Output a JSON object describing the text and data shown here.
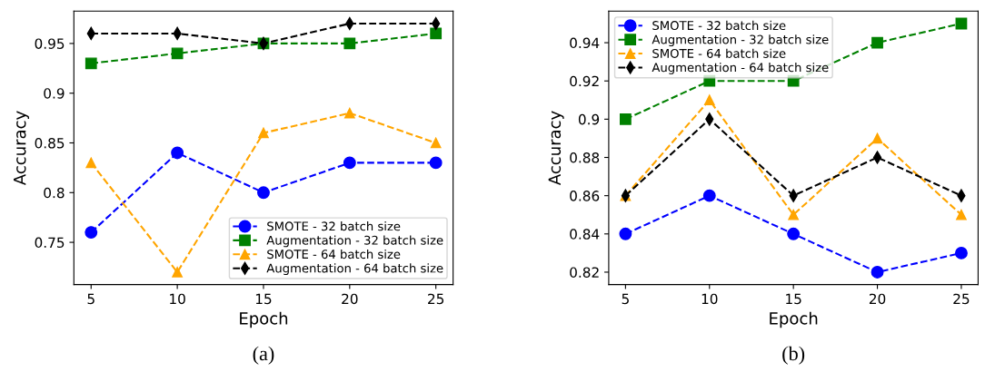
{
  "chart_data": [
    {
      "type": "line",
      "xlabel": "Epoch",
      "ylabel": "Accuracy",
      "annotations": [
        "(a)"
      ],
      "x": [
        5,
        10,
        15,
        20,
        25
      ],
      "xlim": [
        4,
        26
      ],
      "xticks": [
        5,
        10,
        15,
        20,
        25
      ],
      "ylim": [
        0.7075,
        0.9825
      ],
      "yticks": [
        0.75,
        0.8,
        0.85,
        0.9,
        0.95
      ],
      "legend": "bottom right",
      "line_style": "dashed",
      "grid": false,
      "series": [
        {
          "name": "SMOTE - 32 batch size",
          "color": "#0000ff",
          "marker": "circle",
          "values": [
            0.76,
            0.84,
            0.8,
            0.83,
            0.83
          ]
        },
        {
          "name": "Augmentation - 32 batch size",
          "color": "#008000",
          "marker": "square",
          "values": [
            0.93,
            0.94,
            0.95,
            0.95,
            0.96
          ]
        },
        {
          "name": "SMOTE - 64 batch size",
          "color": "#ffa500",
          "marker": "triangle",
          "values": [
            0.83,
            0.72,
            0.86,
            0.88,
            0.85
          ]
        },
        {
          "name": "Augmentation - 64 batch size",
          "color": "#000000",
          "marker": "diamond",
          "values": [
            0.96,
            0.96,
            0.95,
            0.97,
            0.97
          ]
        }
      ]
    },
    {
      "type": "line",
      "xlabel": "Epoch",
      "ylabel": "Accuracy",
      "annotations": [
        "(b)"
      ],
      "x": [
        5,
        10,
        15,
        20,
        25
      ],
      "xlim": [
        4,
        26
      ],
      "xticks": [
        5,
        10,
        15,
        20,
        25
      ],
      "ylim": [
        0.8135,
        0.9565
      ],
      "yticks": [
        0.82,
        0.84,
        0.86,
        0.88,
        0.9,
        0.92,
        0.94
      ],
      "legend": "top left",
      "line_style": "dashed",
      "grid": false,
      "series": [
        {
          "name": "SMOTE - 32 batch size",
          "color": "#0000ff",
          "marker": "circle",
          "values": [
            0.84,
            0.86,
            0.84,
            0.82,
            0.83
          ]
        },
        {
          "name": "Augmentation - 32 batch size",
          "color": "#008000",
          "marker": "square",
          "values": [
            0.9,
            0.92,
            0.92,
            0.94,
            0.95
          ]
        },
        {
          "name": "SMOTE - 64 batch size",
          "color": "#ffa500",
          "marker": "triangle",
          "values": [
            0.86,
            0.91,
            0.85,
            0.89,
            0.85
          ]
        },
        {
          "name": "Augmentation - 64 batch size",
          "color": "#000000",
          "marker": "diamond",
          "values": [
            0.86,
            0.9,
            0.86,
            0.88,
            0.86
          ]
        }
      ]
    }
  ]
}
